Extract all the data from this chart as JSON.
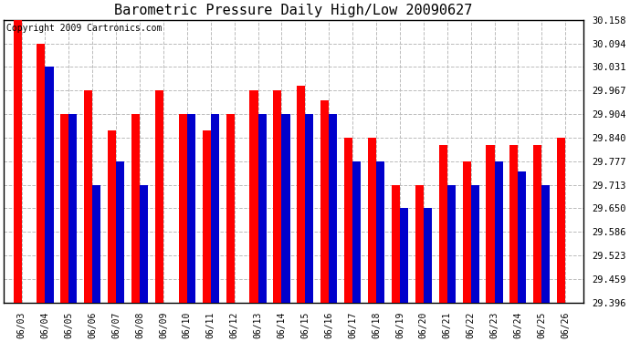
{
  "title": "Barometric Pressure Daily High/Low 20090627",
  "copyright": "Copyright 2009 Cartronics.com",
  "dates": [
    "06/03",
    "06/04",
    "06/05",
    "06/06",
    "06/07",
    "06/08",
    "06/09",
    "06/10",
    "06/11",
    "06/12",
    "06/13",
    "06/14",
    "06/15",
    "06/16",
    "06/17",
    "06/18",
    "06/19",
    "06/20",
    "06/21",
    "06/22",
    "06/23",
    "06/24",
    "06/25",
    "06/26"
  ],
  "highs": [
    30.158,
    30.094,
    29.904,
    29.967,
    29.86,
    29.904,
    29.967,
    29.904,
    29.86,
    29.904,
    29.967,
    29.967,
    29.98,
    29.94,
    29.84,
    29.84,
    29.713,
    29.713,
    29.82,
    29.777,
    29.82,
    29.82,
    29.82,
    29.84
  ],
  "lows": [
    29.396,
    30.031,
    29.904,
    29.713,
    29.777,
    29.713,
    29.396,
    29.904,
    29.904,
    29.396,
    29.904,
    29.904,
    29.904,
    29.904,
    29.777,
    29.777,
    29.65,
    29.65,
    29.713,
    29.713,
    29.777,
    29.75,
    29.713,
    29.396
  ],
  "ylim_min": 29.396,
  "ylim_max": 30.158,
  "yticks": [
    29.396,
    29.459,
    29.523,
    29.586,
    29.65,
    29.713,
    29.777,
    29.84,
    29.904,
    29.967,
    30.031,
    30.094,
    30.158
  ],
  "high_color": "#ff0000",
  "low_color": "#0000cc",
  "bg_color": "#ffffff",
  "grid_color": "#bbbbbb",
  "title_fontsize": 11,
  "copyright_fontsize": 7,
  "bar_width": 0.35,
  "figwidth": 6.9,
  "figheight": 3.75,
  "dpi": 100
}
